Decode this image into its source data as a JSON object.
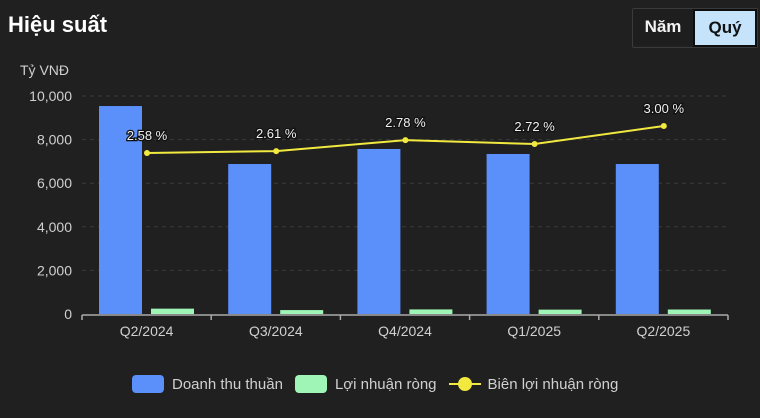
{
  "header": {
    "title": "Hiệu suất",
    "toggle": {
      "options": [
        {
          "label": "Năm",
          "active": false
        },
        {
          "label": "Quý",
          "active": true
        }
      ]
    }
  },
  "colors": {
    "background": "#202020",
    "revenue": "#5b8ff9",
    "profit": "#9ff5b5",
    "margin_line": "#f2e940",
    "grid": "#3a3a3a",
    "axis_text": "#d0d0d0"
  },
  "chart_data": {
    "type": "bar",
    "title": "Hiệu suất",
    "ylabel": "Tỷ VNĐ",
    "xlabel": "",
    "ylim": [
      0,
      10000
    ],
    "yticks": [
      "0",
      "2,000",
      "4,000",
      "6,000",
      "8,000",
      "10,000"
    ],
    "ytick_values": [
      0,
      2000,
      4000,
      6000,
      8000,
      10000
    ],
    "categories": [
      "Q2/2024",
      "Q3/2024",
      "Q4/2024",
      "Q1/2025",
      "Q2/2025"
    ],
    "series": [
      {
        "name": "Doanh thu thuần",
        "type": "bar",
        "values": [
          9540,
          6880,
          7570,
          7340,
          6880
        ]
      },
      {
        "name": "Lợi nhuận ròng",
        "type": "bar",
        "values": [
          246,
          180,
          210,
          200,
          206
        ]
      },
      {
        "name": "Biên lợi nhuận ròng",
        "type": "line",
        "axis": "secondary",
        "values": [
          2.58,
          2.61,
          2.78,
          2.72,
          3.0
        ],
        "labels": [
          "2.58 %",
          "2.61 %",
          "2.78 %",
          "2.72 %",
          "3.00 %"
        ]
      }
    ],
    "grid": true,
    "legend_position": "bottom"
  },
  "legend": {
    "items": [
      {
        "label": "Doanh thu thuần"
      },
      {
        "label": "Lợi nhuận ròng"
      },
      {
        "label": "Biên lợi nhuận ròng"
      }
    ]
  }
}
